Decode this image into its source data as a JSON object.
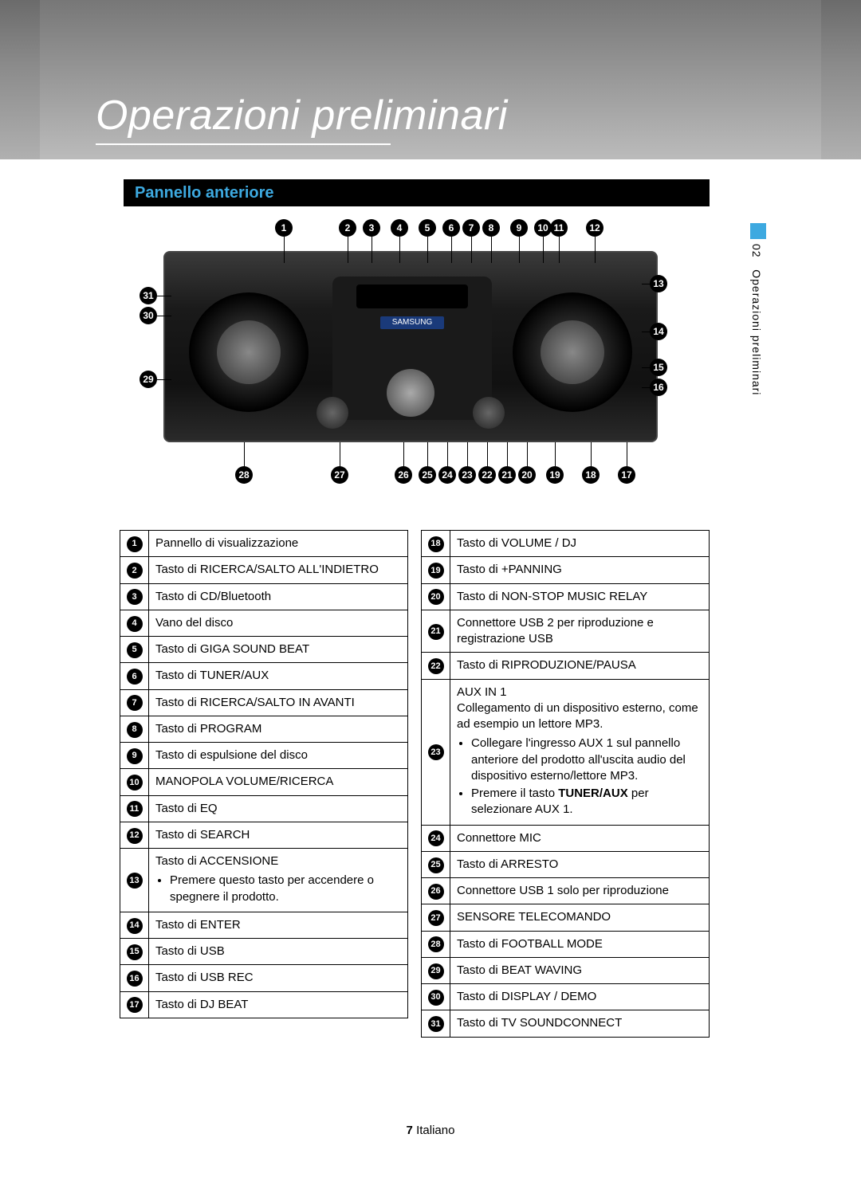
{
  "title": "Operazioni preliminari",
  "section": "Pannello anteriore",
  "side_tab": {
    "num": "02",
    "label": "Operazioni preliminari"
  },
  "device_logo": "SAMSUNG",
  "footer": {
    "page": "7",
    "lang": "Italiano"
  },
  "callouts_top": [
    "1",
    "2",
    "3",
    "4",
    "5",
    "6",
    "7",
    "8",
    "9",
    "10",
    "11",
    "12"
  ],
  "callouts_left": [
    "31",
    "30",
    "29"
  ],
  "callouts_right": [
    "13",
    "14",
    "15",
    "16"
  ],
  "callouts_bottom": [
    "28",
    "27",
    "26",
    "25",
    "24",
    "23",
    "22",
    "21",
    "20",
    "19",
    "18",
    "17"
  ],
  "table_left": [
    {
      "n": "1",
      "t": "Pannello di visualizzazione"
    },
    {
      "n": "2",
      "t": "Tasto di RICERCA/SALTO ALL'INDIETRO"
    },
    {
      "n": "3",
      "t": "Tasto di CD/Bluetooth"
    },
    {
      "n": "4",
      "t": "Vano del disco"
    },
    {
      "n": "5",
      "t": "Tasto di GIGA SOUND BEAT"
    },
    {
      "n": "6",
      "t": "Tasto di TUNER/AUX"
    },
    {
      "n": "7",
      "t": "Tasto di RICERCA/SALTO IN AVANTI"
    },
    {
      "n": "8",
      "t": "Tasto di PROGRAM"
    },
    {
      "n": "9",
      "t": "Tasto di espulsione del disco"
    },
    {
      "n": "10",
      "t": "MANOPOLA VOLUME/RICERCA"
    },
    {
      "n": "11",
      "t": "Tasto di EQ"
    },
    {
      "n": "12",
      "t": "Tasto di SEARCH"
    },
    {
      "n": "13",
      "t": "Tasto di ACCENSIONE",
      "sub": [
        "Premere questo tasto per accendere o spegnere il prodotto."
      ]
    },
    {
      "n": "14",
      "t": "Tasto di ENTER"
    },
    {
      "n": "15",
      "t": "Tasto di USB"
    },
    {
      "n": "16",
      "t": "Tasto di USB REC"
    },
    {
      "n": "17",
      "t": "Tasto di DJ BEAT"
    }
  ],
  "table_right": [
    {
      "n": "18",
      "t": "Tasto di VOLUME / DJ"
    },
    {
      "n": "19",
      "t": "Tasto di +PANNING"
    },
    {
      "n": "20",
      "t": "Tasto di NON-STOP MUSIC RELAY"
    },
    {
      "n": "21",
      "t": "Connettore USB 2 per riproduzione e registrazione USB"
    },
    {
      "n": "22",
      "t": "Tasto di RIPRODUZIONE/PAUSA"
    },
    {
      "n": "23",
      "t": "AUX IN 1",
      "sub_pre": "Collegamento di un dispositivo esterno, come ad esempio un lettore MP3.",
      "sub": [
        "Collegare l'ingresso AUX 1 sul pannello anteriore del prodotto all'uscita audio del dispositivo esterno/lettore MP3.",
        "Premere il tasto <b>TUNER/AUX</b> per selezionare AUX 1."
      ]
    },
    {
      "n": "24",
      "t": "Connettore MIC"
    },
    {
      "n": "25",
      "t": "Tasto di ARRESTO"
    },
    {
      "n": "26",
      "t": "Connettore USB 1 solo per riproduzione"
    },
    {
      "n": "27",
      "t": "SENSORE TELECOMANDO"
    },
    {
      "n": "28",
      "t": "Tasto di FOOTBALL MODE"
    },
    {
      "n": "29",
      "t": "Tasto di BEAT WAVING"
    },
    {
      "n": "30",
      "t": "Tasto di DISPLAY / DEMO"
    },
    {
      "n": "31",
      "t": "Tasto di TV SOUNDCONNECT"
    }
  ]
}
